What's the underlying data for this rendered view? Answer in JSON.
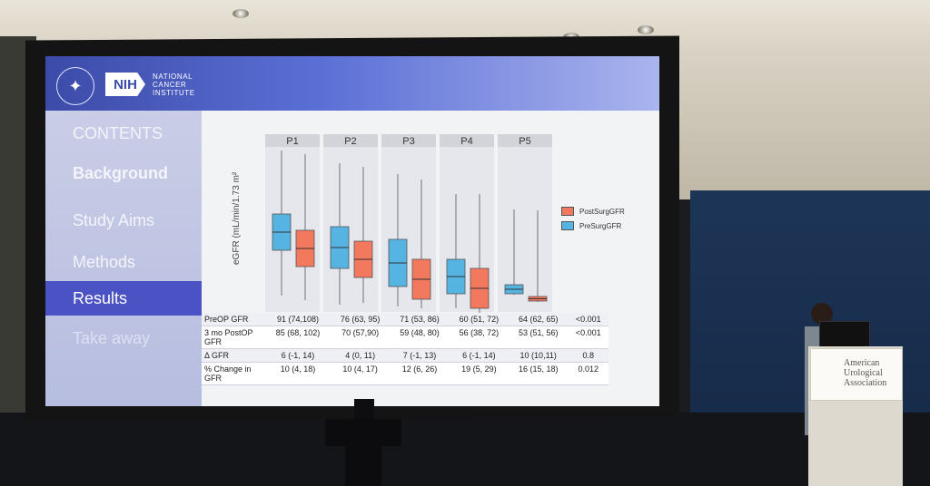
{
  "slide": {
    "nih_badge": "NIH",
    "institute": [
      "NATIONAL",
      "CANCER",
      "INSTITUTE"
    ],
    "sidebar": [
      {
        "label": "CONTENTS",
        "state": "normal"
      },
      {
        "label": "Background",
        "state": "normal"
      },
      {
        "label": "Study Aims",
        "state": "normal"
      },
      {
        "label": "Methods",
        "state": "normal"
      },
      {
        "label": "Results",
        "state": "active"
      },
      {
        "label": "Take away",
        "state": "faded"
      }
    ],
    "chart": {
      "y_label": "eGFR (mL/min/1.73 m²",
      "panels": [
        "P1",
        "P2",
        "P3",
        "P4",
        "P5"
      ],
      "legend": [
        "PostSurgGFR",
        "PreSurgGFR"
      ]
    },
    "table": {
      "rows": [
        {
          "label": "PreOP GFR",
          "values": [
            "91 (74,108)",
            "76 (63, 95)",
            "71 (53, 86)",
            "60 (51, 72)",
            "64 (62, 65)",
            "<0.001"
          ]
        },
        {
          "label": "3 mo PostOP GFR",
          "values": [
            "85 (68, 102)",
            "70 (57,90)",
            "59 (48, 80)",
            "56 (38, 72)",
            "53 (51, 56)",
            "<0.001"
          ]
        },
        {
          "label": "Δ GFR",
          "values": [
            "6 (-1, 14)",
            "4 (0, 11)",
            "7 (-1, 13)",
            "6 (-1, 14)",
            "10 (10,11)",
            "0.8"
          ]
        },
        {
          "label": "% Change in GFR",
          "values": [
            "10 (4, 18)",
            "10 (4, 17)",
            "12 (6, 26)",
            "19 (5, 29)",
            "16 (15, 18)",
            "0.012"
          ]
        }
      ]
    }
  },
  "podium_sign": [
    "American",
    "Urological",
    "Association"
  ],
  "colors": {
    "pre": "#56b4e3",
    "post": "#f2785e",
    "active_nav": "#4a52c4"
  }
}
